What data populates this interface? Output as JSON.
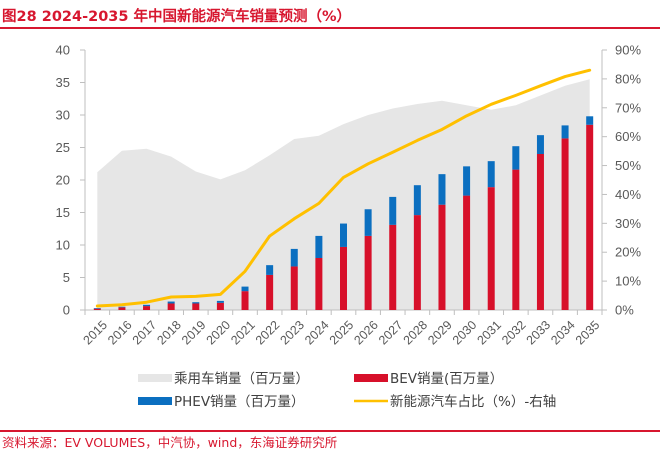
{
  "header": {
    "title": "图28  2024-2035 年中国新能源汽车销量预测（%）"
  },
  "footer": {
    "source": "资料来源：EV VOLUMES，中汽协，wind，东海证券研究所"
  },
  "chart_data": {
    "type": "bar",
    "title": "图28  2024-2035 年中国新能源汽车销量预测（%）",
    "xlabel": "",
    "ylabel": "",
    "y2label": "",
    "categories": [
      "2015",
      "2016",
      "2017",
      "2018",
      "2019",
      "2020",
      "2021",
      "2022",
      "2023",
      "2024",
      "2025",
      "2026",
      "2027",
      "2028",
      "2029",
      "2030",
      "2031",
      "2032",
      "2033",
      "2034",
      "2035"
    ],
    "ylim": [
      0,
      40
    ],
    "y_ticks": [
      0,
      5,
      10,
      15,
      20,
      25,
      30,
      35,
      40
    ],
    "y_tick_labels": [
      "0",
      "5",
      "10",
      "15",
      "20",
      "25",
      "30",
      "35",
      "40"
    ],
    "y2lim": [
      0,
      90
    ],
    "y2_ticks": [
      0,
      10,
      20,
      30,
      40,
      50,
      60,
      70,
      80,
      90
    ],
    "y2_tick_labels": [
      "0%",
      "10%",
      "20%",
      "30%",
      "40%",
      "50%",
      "60%",
      "70%",
      "80%",
      "90%"
    ],
    "grid": false,
    "legend_position": "bottom",
    "series": [
      {
        "name": "乘用车销量（百万量）",
        "type": "area",
        "axis": "left",
        "color": "#e6e6e6",
        "values": [
          21.2,
          24.5,
          24.8,
          23.6,
          21.3,
          20.1,
          21.5,
          23.8,
          26.3,
          26.8,
          28.6,
          30.0,
          31.0,
          31.7,
          32.2,
          31.5,
          30.8,
          31.5,
          33.0,
          34.5,
          35.5
        ]
      },
      {
        "name": "BEV销量(百万量）",
        "type": "bar",
        "stack": "nev",
        "axis": "left",
        "color": "#d7102a",
        "values": [
          0.2,
          0.4,
          0.6,
          1.0,
          1.0,
          1.1,
          2.9,
          5.4,
          6.7,
          8.0,
          9.7,
          11.4,
          13.1,
          14.6,
          16.2,
          17.6,
          18.9,
          21.6,
          24.0,
          26.4,
          28.5
        ]
      },
      {
        "name": "PHEV销量（百万量）",
        "type": "bar",
        "stack": "nev",
        "axis": "left",
        "color": "#0b6fc0",
        "values": [
          0.1,
          0.1,
          0.2,
          0.3,
          0.2,
          0.3,
          0.7,
          1.5,
          2.7,
          3.4,
          3.6,
          4.1,
          4.3,
          4.6,
          4.7,
          4.5,
          4.0,
          3.6,
          2.9,
          2.0,
          1.3
        ]
      },
      {
        "name": "新能源汽车占比（%）-右轴",
        "type": "line",
        "axis": "right",
        "color": "#ffc000",
        "values": [
          1.4,
          1.8,
          2.7,
          4.5,
          4.7,
          5.4,
          13.4,
          25.6,
          31.6,
          36.9,
          45.9,
          50.6,
          54.6,
          58.7,
          62.5,
          67.2,
          71.2,
          74.3,
          77.6,
          80.8,
          83.0
        ]
      }
    ],
    "legend": [
      {
        "label": "乘用车销量（百万量）",
        "color": "#e6e6e6",
        "kind": "area"
      },
      {
        "label": "BEV销量(百万量）",
        "color": "#d7102a",
        "kind": "bar"
      },
      {
        "label": "PHEV销量（百万量）",
        "color": "#0b6fc0",
        "kind": "bar"
      },
      {
        "label": "新能源汽车占比（%）-右轴",
        "color": "#ffc000",
        "kind": "line"
      }
    ]
  }
}
